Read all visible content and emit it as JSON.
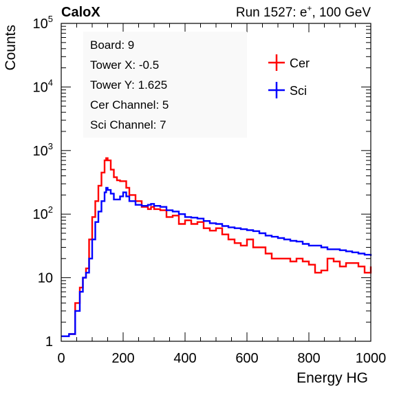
{
  "header": {
    "brand": "CaloX",
    "run_label": "Run 1527: e",
    "run_sup": "+",
    "run_suffix": ", 100 GeV"
  },
  "info_box": {
    "lines": [
      "Board: 9",
      "Tower X: -0.5",
      "Tower Y: 1.625",
      "Cer Channel: 5",
      "Sci Channel: 7"
    ]
  },
  "chart_data": {
    "type": "line",
    "title": "",
    "xlabel": "Energy HG",
    "ylabel": "Counts",
    "xlim": [
      0,
      1000
    ],
    "ylim": [
      1,
      100000
    ],
    "yscale": "log",
    "grid": false,
    "legend_position": "top-right",
    "x_ticks": [
      0,
      200,
      400,
      600,
      800,
      1000
    ],
    "x_tick_labels": [
      "0",
      "200",
      "400",
      "600",
      "800",
      "1000"
    ],
    "y_ticks": [
      1,
      10,
      100,
      1000,
      10000,
      100000
    ],
    "y_tick_labels": [
      {
        "base": "1",
        "exp": ""
      },
      {
        "base": "10",
        "exp": ""
      },
      {
        "base": "10",
        "exp": "2"
      },
      {
        "base": "10",
        "exp": "3"
      },
      {
        "base": "10",
        "exp": "4"
      },
      {
        "base": "10",
        "exp": "5"
      }
    ],
    "x": [
      0,
      25,
      45,
      60,
      70,
      80,
      90,
      100,
      110,
      120,
      130,
      140,
      145,
      150,
      160,
      170,
      180,
      190,
      200,
      210,
      220,
      240,
      260,
      280,
      290,
      300,
      320,
      340,
      360,
      380,
      400,
      420,
      440,
      460,
      480,
      500,
      520,
      540,
      560,
      580,
      600,
      620,
      640,
      660,
      680,
      700,
      720,
      740,
      760,
      780,
      800,
      820,
      840,
      860,
      880,
      900,
      920,
      940,
      960,
      980,
      1000
    ],
    "series": [
      {
        "name": "Cer",
        "color": "#ff0000",
        "values": [
          null,
          1.3,
          4,
          7,
          10,
          14,
          40,
          90,
          160,
          280,
          450,
          700,
          760,
          700,
          500,
          380,
          340,
          330,
          330,
          260,
          200,
          160,
          130,
          120,
          130,
          120,
          115,
          90,
          95,
          70,
          80,
          70,
          75,
          60,
          55,
          60,
          48,
          40,
          35,
          32,
          40,
          30,
          30,
          24,
          20,
          20,
          20,
          18,
          20,
          18,
          16,
          12,
          13,
          20,
          18,
          15,
          17,
          17,
          15,
          12,
          15
        ]
      },
      {
        "name": "Sci",
        "color": "#0000ff",
        "values": [
          1.2,
          1.3,
          3,
          6,
          10,
          12,
          20,
          40,
          75,
          110,
          160,
          220,
          260,
          240,
          210,
          170,
          170,
          190,
          220,
          190,
          160,
          140,
          135,
          140,
          145,
          135,
          130,
          115,
          110,
          100,
          90,
          88,
          85,
          78,
          72,
          70,
          65,
          62,
          60,
          58,
          56,
          54,
          50,
          46,
          44,
          42,
          40,
          38,
          37,
          34,
          32,
          32,
          30,
          28,
          28,
          27,
          26,
          25,
          24,
          23,
          22
        ]
      }
    ]
  }
}
